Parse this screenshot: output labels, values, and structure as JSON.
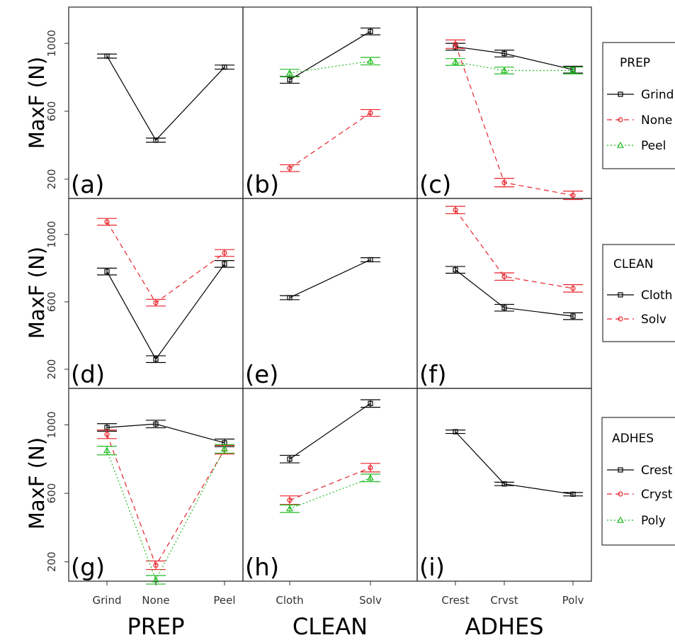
{
  "colors": {
    "series1": "#000000",
    "series2": "#e8222a",
    "series3": "#22bb22",
    "frame": "#333333"
  },
  "y_axis": {
    "ylabel": "MaxF (N)",
    "ticks": [
      200,
      600,
      1000
    ],
    "ylim": [
      120,
      1180
    ]
  },
  "x_axes": [
    {
      "xlabel": "PREP",
      "categories": [
        "Grind",
        "None",
        "Peel"
      ]
    },
    {
      "xlabel": "CLEAN",
      "categories": [
        "Cloth",
        "Solv"
      ]
    },
    {
      "xlabel": "ADHES",
      "categories": [
        "Crest",
        "Crvst",
        "Polv"
      ]
    }
  ],
  "legends": [
    {
      "title": "PREP",
      "entries": [
        "Grind",
        "None",
        "Peel"
      ]
    },
    {
      "title": "CLEAN",
      "entries": [
        "Cloth",
        "Solv"
      ]
    },
    {
      "title": "ADHES",
      "entries": [
        "Crest",
        "Cryst",
        "Poly"
      ]
    }
  ],
  "chart_data": [
    {
      "type": "line",
      "panel_label": "(a)",
      "grid": false,
      "categories": [
        "Grind",
        "None",
        "Peel"
      ],
      "series": [
        {
          "values": [
            925,
            430,
            860
          ],
          "err": 12,
          "style": "solid",
          "marker": "square",
          "color_key": "series1"
        }
      ]
    },
    {
      "type": "line",
      "panel_label": "(b)",
      "grid": false,
      "categories": [
        "Cloth",
        "Solv"
      ],
      "series": [
        {
          "name": "Grind",
          "values": [
            785,
            1070
          ],
          "err": 20,
          "style": "solid",
          "marker": "square",
          "color_key": "series1"
        },
        {
          "name": "None",
          "values": [
            265,
            590
          ],
          "err": 20,
          "style": "dashed",
          "marker": "circle",
          "color_key": "series2"
        },
        {
          "name": "Peel",
          "values": [
            825,
            895
          ],
          "err": 22,
          "style": "dotted",
          "marker": "triangle",
          "color_key": "series3"
        }
      ]
    },
    {
      "type": "line",
      "panel_label": "(c)",
      "grid": false,
      "categories": [
        "Crest",
        "Crvst",
        "Polv"
      ],
      "series": [
        {
          "name": "Grind",
          "values": [
            980,
            940,
            845
          ],
          "err": 20,
          "style": "solid",
          "marker": "square",
          "color_key": "series1"
        },
        {
          "name": "None",
          "values": [
            995,
            180,
            105
          ],
          "err": 25,
          "style": "dashed",
          "marker": "circle",
          "color_key": "series2"
        },
        {
          "name": "Peel",
          "values": [
            890,
            840,
            840
          ],
          "err": 20,
          "style": "dotted",
          "marker": "triangle",
          "color_key": "series3"
        }
      ]
    },
    {
      "type": "line",
      "panel_label": "(d)",
      "grid": false,
      "categories": [
        "Grind",
        "None",
        "Peel"
      ],
      "series": [
        {
          "name": "Cloth",
          "values": [
            780,
            260,
            825
          ],
          "err": 20,
          "style": "solid",
          "marker": "square",
          "color_key": "series1"
        },
        {
          "name": "Solv",
          "values": [
            1075,
            595,
            890
          ],
          "err": 20,
          "style": "dashed",
          "marker": "circle",
          "color_key": "series2"
        }
      ]
    },
    {
      "type": "line",
      "panel_label": "(e)",
      "grid": false,
      "categories": [
        "Cloth",
        "Solv"
      ],
      "series": [
        {
          "values": [
            625,
            850
          ],
          "err": 12,
          "style": "solid",
          "marker": "square",
          "color_key": "series1"
        }
      ]
    },
    {
      "type": "line",
      "panel_label": "(f)",
      "grid": false,
      "categories": [
        "Crest",
        "Crvst",
        "Polv"
      ],
      "series": [
        {
          "name": "Cloth",
          "values": [
            790,
            565,
            515
          ],
          "err": 20,
          "style": "solid",
          "marker": "square",
          "color_key": "series1"
        },
        {
          "name": "Solv",
          "values": [
            1145,
            750,
            680
          ],
          "err": 22,
          "style": "dashed",
          "marker": "circle",
          "color_key": "series2"
        }
      ]
    },
    {
      "type": "line",
      "panel_label": "(g)",
      "grid": false,
      "categories": [
        "Grind",
        "None",
        "Peel"
      ],
      "series": [
        {
          "name": "Crest",
          "values": [
            985,
            1005,
            895
          ],
          "err": 22,
          "style": "solid",
          "marker": "square",
          "color_key": "series1"
        },
        {
          "name": "Cryst",
          "values": [
            945,
            180,
            855
          ],
          "err": 25,
          "style": "dashed",
          "marker": "circle",
          "color_key": "series2"
        },
        {
          "name": "Poly",
          "values": [
            850,
            95,
            860
          ],
          "err": 25,
          "style": "dotted",
          "marker": "triangle",
          "color_key": "series3"
        }
      ]
    },
    {
      "type": "line",
      "panel_label": "(h)",
      "grid": false,
      "categories": [
        "Cloth",
        "Solv"
      ],
      "series": [
        {
          "name": "Crest",
          "values": [
            800,
            1125
          ],
          "err": 22,
          "style": "solid",
          "marker": "square",
          "color_key": "series1"
        },
        {
          "name": "Cryst",
          "values": [
            560,
            750
          ],
          "err": 25,
          "style": "dashed",
          "marker": "circle",
          "color_key": "series2"
        },
        {
          "name": "Poly",
          "values": [
            510,
            690
          ],
          "err": 22,
          "style": "dotted",
          "marker": "triangle",
          "color_key": "series3"
        }
      ]
    },
    {
      "type": "line",
      "panel_label": "(i)",
      "grid": false,
      "categories": [
        "Crest",
        "Crvst",
        "Polv"
      ],
      "series": [
        {
          "values": [
            960,
            655,
            595
          ],
          "err": 10,
          "style": "solid",
          "marker": "square",
          "color_key": "series1"
        }
      ]
    }
  ]
}
